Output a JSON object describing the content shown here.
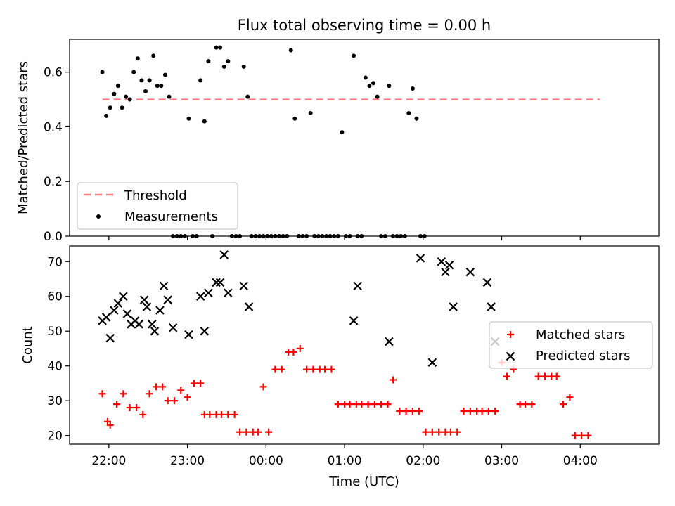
{
  "chart_data": [
    {
      "type": "scatter",
      "title": "Flux total observing time = 0.00 h",
      "ylabel": "Matched/Predicted stars",
      "ylim": [
        0,
        0.72
      ],
      "yticks": [
        0.0,
        0.2,
        0.4,
        0.6
      ],
      "xlim": [
        "21:30",
        "05:00"
      ],
      "legend_position": "lower-left",
      "threshold": {
        "name": "Threshold",
        "value": 0.5,
        "from": "21:55",
        "to": "04:15",
        "color": "#ff7f7f"
      },
      "measurements": {
        "name": "Measurements",
        "color": "#000000",
        "points": [
          [
            "21:55",
            0.6
          ],
          [
            "21:58",
            0.44
          ],
          [
            "22:01",
            0.47
          ],
          [
            "22:04",
            0.52
          ],
          [
            "22:07",
            0.55
          ],
          [
            "22:10",
            0.47
          ],
          [
            "22:13",
            0.51
          ],
          [
            "22:16",
            0.5
          ],
          [
            "22:19",
            0.6
          ],
          [
            "22:22",
            0.65
          ],
          [
            "22:25",
            0.57
          ],
          [
            "22:28",
            0.53
          ],
          [
            "22:31",
            0.57
          ],
          [
            "22:34",
            0.66
          ],
          [
            "22:37",
            0.55
          ],
          [
            "22:40",
            0.55
          ],
          [
            "22:43",
            0.59
          ],
          [
            "22:46",
            0.51
          ],
          [
            "22:49",
            0.0
          ],
          [
            "22:52",
            0.0
          ],
          [
            "22:55",
            0.0
          ],
          [
            "22:58",
            0.0
          ],
          [
            "23:01",
            0.43
          ],
          [
            "23:04",
            0.0
          ],
          [
            "23:07",
            0.0
          ],
          [
            "23:10",
            0.57
          ],
          [
            "23:13",
            0.42
          ],
          [
            "23:16",
            0.64
          ],
          [
            "23:19",
            0.0
          ],
          [
            "23:22",
            0.69
          ],
          [
            "23:25",
            0.69
          ],
          [
            "23:28",
            0.62
          ],
          [
            "23:31",
            0.64
          ],
          [
            "23:34",
            0.0
          ],
          [
            "23:37",
            0.0
          ],
          [
            "23:40",
            0.0
          ],
          [
            "23:43",
            0.62
          ],
          [
            "23:46",
            0.51
          ],
          [
            "23:49",
            0.0
          ],
          [
            "23:52",
            0.0
          ],
          [
            "23:55",
            0.0
          ],
          [
            "23:58",
            0.0
          ],
          [
            "00:01",
            0.0
          ],
          [
            "00:04",
            0.0
          ],
          [
            "00:07",
            0.0
          ],
          [
            "00:10",
            0.0
          ],
          [
            "00:13",
            0.0
          ],
          [
            "00:16",
            0.0
          ],
          [
            "00:19",
            0.68
          ],
          [
            "00:22",
            0.43
          ],
          [
            "00:25",
            0.0
          ],
          [
            "00:28",
            0.0
          ],
          [
            "00:31",
            0.0
          ],
          [
            "00:34",
            0.45
          ],
          [
            "00:37",
            0.0
          ],
          [
            "00:40",
            0.0
          ],
          [
            "00:43",
            0.0
          ],
          [
            "00:46",
            0.0
          ],
          [
            "00:49",
            0.0
          ],
          [
            "00:52",
            0.0
          ],
          [
            "00:55",
            0.0
          ],
          [
            "00:58",
            0.38
          ],
          [
            "01:01",
            0.0
          ],
          [
            "01:04",
            0.0
          ],
          [
            "01:07",
            0.66
          ],
          [
            "01:10",
            0.0
          ],
          [
            "01:13",
            0.0
          ],
          [
            "01:16",
            0.58
          ],
          [
            "01:19",
            0.55
          ],
          [
            "01:22",
            0.56
          ],
          [
            "01:25",
            0.51
          ],
          [
            "01:28",
            0.0
          ],
          [
            "01:31",
            0.0
          ],
          [
            "01:34",
            0.55
          ],
          [
            "01:37",
            0.0
          ],
          [
            "01:40",
            0.0
          ],
          [
            "01:43",
            0.0
          ],
          [
            "01:46",
            0.0
          ],
          [
            "01:49",
            0.45
          ],
          [
            "01:52",
            0.54
          ],
          [
            "01:55",
            0.43
          ],
          [
            "01:58",
            0.0
          ],
          [
            "02:01",
            0.0
          ]
        ]
      }
    },
    {
      "type": "scatter",
      "xlabel": "Time (UTC)",
      "ylabel": "Count",
      "ylim": [
        17.5,
        74.5
      ],
      "yticks": [
        20,
        30,
        40,
        50,
        60,
        70
      ],
      "xticks": [
        "22:00",
        "23:00",
        "00:00",
        "01:00",
        "02:00",
        "03:00",
        "04:00"
      ],
      "xlim": [
        "21:30",
        "05:00"
      ],
      "legend_position": "right",
      "series": [
        {
          "name": "Matched stars",
          "marker": "plus",
          "color": "#ff0000",
          "points": [
            [
              "21:55",
              32
            ],
            [
              "21:59",
              24
            ],
            [
              "22:01",
              23
            ],
            [
              "22:06",
              29
            ],
            [
              "22:11",
              32
            ],
            [
              "22:16",
              28
            ],
            [
              "22:21",
              28
            ],
            [
              "22:26",
              26
            ],
            [
              "22:31",
              32
            ],
            [
              "22:36",
              34
            ],
            [
              "22:41",
              34
            ],
            [
              "22:45",
              30
            ],
            [
              "22:50",
              30
            ],
            [
              "22:55",
              33
            ],
            [
              "22:60",
              31
            ],
            [
              "23:05",
              35
            ],
            [
              "23:10",
              35
            ],
            [
              "23:13",
              26
            ],
            [
              "23:17",
              26
            ],
            [
              "23:22",
              26
            ],
            [
              "23:26",
              26
            ],
            [
              "23:31",
              26
            ],
            [
              "23:36",
              26
            ],
            [
              "23:40",
              21
            ],
            [
              "23:45",
              21
            ],
            [
              "23:50",
              21
            ],
            [
              "23:54",
              21
            ],
            [
              "23:58",
              34
            ],
            [
              "00:02",
              21
            ],
            [
              "00:07",
              39
            ],
            [
              "00:12",
              39
            ],
            [
              "00:17",
              44
            ],
            [
              "00:21",
              44
            ],
            [
              "00:26",
              45
            ],
            [
              "00:31",
              39
            ],
            [
              "00:36",
              39
            ],
            [
              "00:41",
              39
            ],
            [
              "00:45",
              39
            ],
            [
              "00:50",
              39
            ],
            [
              "00:55",
              29
            ],
            [
              "01:00",
              29
            ],
            [
              "01:04",
              29
            ],
            [
              "01:09",
              29
            ],
            [
              "01:13",
              29
            ],
            [
              "01:18",
              29
            ],
            [
              "01:23",
              29
            ],
            [
              "01:28",
              29
            ],
            [
              "01:33",
              29
            ],
            [
              "01:37",
              36
            ],
            [
              "01:42",
              27
            ],
            [
              "01:47",
              27
            ],
            [
              "01:52",
              27
            ],
            [
              "01:57",
              27
            ],
            [
              "02:02",
              21
            ],
            [
              "02:07",
              21
            ],
            [
              "02:12",
              21
            ],
            [
              "02:17",
              21
            ],
            [
              "02:21",
              21
            ],
            [
              "02:26",
              21
            ],
            [
              "02:31",
              27
            ],
            [
              "02:36",
              27
            ],
            [
              "02:41",
              27
            ],
            [
              "02:45",
              27
            ],
            [
              "02:50",
              27
            ],
            [
              "02:55",
              27
            ],
            [
              "03:00",
              41
            ],
            [
              "03:04",
              37
            ],
            [
              "03:09",
              39
            ],
            [
              "03:14",
              29
            ],
            [
              "03:18",
              29
            ],
            [
              "03:23",
              29
            ],
            [
              "03:28",
              37
            ],
            [
              "03:33",
              37
            ],
            [
              "03:38",
              37
            ],
            [
              "03:42",
              37
            ],
            [
              "03:47",
              29
            ],
            [
              "03:52",
              31
            ],
            [
              "03:56",
              20
            ],
            [
              "04:01",
              20
            ],
            [
              "04:06",
              20
            ]
          ]
        },
        {
          "name": "Predicted stars",
          "marker": "x",
          "color": "#000000",
          "points": [
            [
              "21:55",
              53
            ],
            [
              "21:58",
              54
            ],
            [
              "22:01",
              48
            ],
            [
              "22:04",
              56
            ],
            [
              "22:07",
              58
            ],
            [
              "22:11",
              60
            ],
            [
              "22:14",
              55
            ],
            [
              "22:17",
              52
            ],
            [
              "22:20",
              53
            ],
            [
              "22:23",
              52
            ],
            [
              "22:27",
              59
            ],
            [
              "22:29",
              57
            ],
            [
              "22:33",
              52
            ],
            [
              "22:35",
              50
            ],
            [
              "22:39",
              56
            ],
            [
              "22:42",
              63
            ],
            [
              "22:45",
              59
            ],
            [
              "22:49",
              51
            ],
            [
              "23:01",
              49
            ],
            [
              "23:10",
              60
            ],
            [
              "23:13",
              50
            ],
            [
              "23:16",
              61
            ],
            [
              "23:22",
              64
            ],
            [
              "23:25",
              64
            ],
            [
              "23:28",
              72
            ],
            [
              "23:31",
              61
            ],
            [
              "23:43",
              63
            ],
            [
              "23:47",
              57
            ],
            [
              "01:07",
              53
            ],
            [
              "01:10",
              63
            ],
            [
              "01:34",
              47
            ],
            [
              "01:58",
              71
            ],
            [
              "02:07",
              41
            ],
            [
              "02:14",
              70
            ],
            [
              "02:17",
              67
            ],
            [
              "02:20",
              69
            ],
            [
              "02:23",
              57
            ],
            [
              "02:36",
              67
            ],
            [
              "02:49",
              64
            ],
            [
              "02:52",
              57
            ],
            [
              "02:55",
              47
            ]
          ]
        }
      ]
    }
  ]
}
